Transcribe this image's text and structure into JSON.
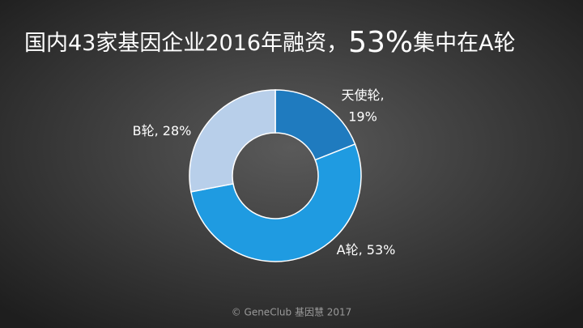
{
  "chart_data": {
    "type": "donut",
    "title": [
      "国内43家基因企业2016年融资，",
      "53%",
      "集中在A轮"
    ],
    "categories": [
      "天使轮",
      "A轮",
      "B轮"
    ],
    "values": [
      19,
      53,
      28
    ],
    "value_labels": [
      "19%",
      "53%",
      "28%"
    ],
    "colors": [
      "#1f7bbf",
      "#1f9be1",
      "#b8cfea"
    ],
    "footer": "© GeneClub 基因慧 2017"
  }
}
